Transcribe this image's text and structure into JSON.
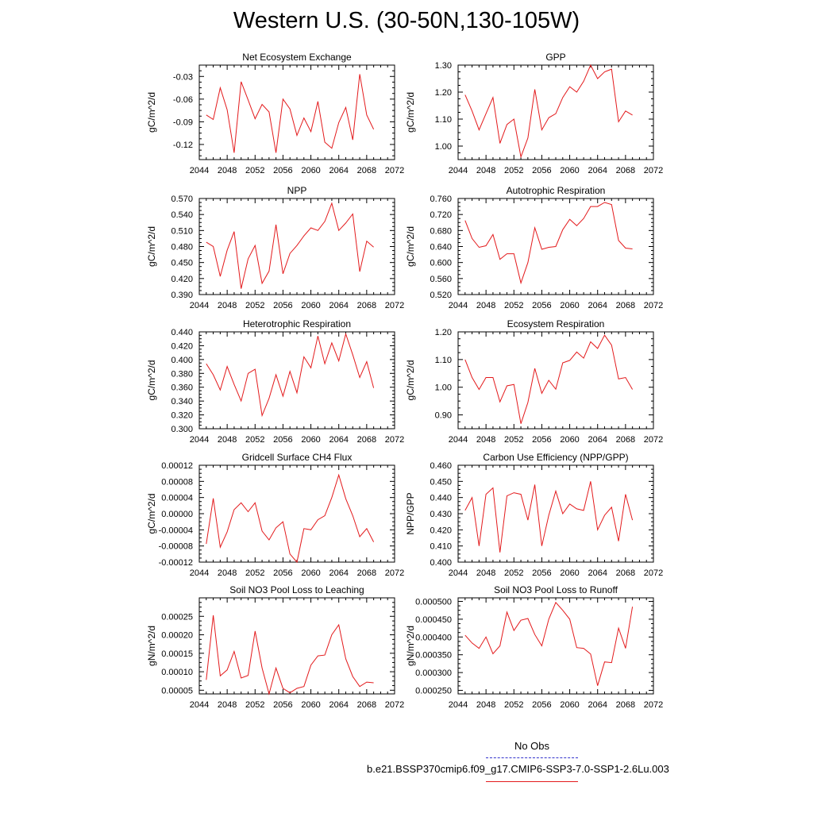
{
  "page": {
    "title": "Western U.S. (30-50N,130-105W)"
  },
  "legend": {
    "obs_label": "No Obs",
    "model_label": "b.e21.BSSP370cmip6.f09_g17.CMIP6-SSP3-7.0-SSP1-2.6Lu.003",
    "obs_color": "#3333cc",
    "model_color": "#e31a1c"
  },
  "chart_data": [
    {
      "type": "line",
      "title": "Net Ecosystem Exchange",
      "ylabel": "gC/m^2/d",
      "xlim": [
        2044,
        2072
      ],
      "xticks": [
        2044,
        2048,
        2052,
        2056,
        2060,
        2064,
        2068,
        2072
      ],
      "ylim": [
        -0.14,
        -0.015
      ],
      "yticks": [
        -0.03,
        -0.06,
        -0.09,
        -0.12
      ],
      "ytick_labels": [
        "-0.03",
        "-0.06",
        "-0.09",
        "-0.12"
      ],
      "series": [
        {
          "color": "#e31a1c",
          "x": [
            2045,
            2046,
            2047,
            2048,
            2049,
            2050,
            2051,
            2052,
            2053,
            2054,
            2055,
            2056,
            2057,
            2058,
            2059,
            2060,
            2061,
            2062,
            2063,
            2064,
            2065,
            2066,
            2067,
            2068,
            2069
          ],
          "values": [
            -0.081,
            -0.087,
            -0.045,
            -0.074,
            -0.131,
            -0.037,
            -0.061,
            -0.086,
            -0.067,
            -0.077,
            -0.131,
            -0.06,
            -0.073,
            -0.108,
            -0.085,
            -0.103,
            -0.063,
            -0.117,
            -0.125,
            -0.091,
            -0.071,
            -0.114,
            -0.027,
            -0.081,
            -0.1
          ]
        }
      ]
    },
    {
      "type": "line",
      "title": "GPP",
      "ylabel": "gC/m^2/d",
      "xlim": [
        2044,
        2072
      ],
      "xticks": [
        2044,
        2048,
        2052,
        2056,
        2060,
        2064,
        2068,
        2072
      ],
      "ylim": [
        0.95,
        1.3
      ],
      "yticks": [
        1.0,
        1.1,
        1.2,
        1.3
      ],
      "ytick_labels": [
        "1.00",
        "1.10",
        "1.20",
        "1.30"
      ],
      "series": [
        {
          "color": "#e31a1c",
          "x": [
            2045,
            2046,
            2047,
            2048,
            2049,
            2050,
            2051,
            2052,
            2053,
            2054,
            2055,
            2056,
            2057,
            2058,
            2059,
            2060,
            2061,
            2062,
            2063,
            2064,
            2065,
            2066,
            2067,
            2068,
            2069
          ],
          "values": [
            1.19,
            1.13,
            1.06,
            1.12,
            1.18,
            1.01,
            1.08,
            1.1,
            0.96,
            1.03,
            1.21,
            1.06,
            1.105,
            1.12,
            1.18,
            1.22,
            1.2,
            1.24,
            1.3,
            1.25,
            1.275,
            1.285,
            1.09,
            1.13,
            1.115
          ]
        }
      ]
    },
    {
      "type": "line",
      "title": "NPP",
      "ylabel": "gC/m^2/d",
      "xlim": [
        2044,
        2072
      ],
      "xticks": [
        2044,
        2048,
        2052,
        2056,
        2060,
        2064,
        2068,
        2072
      ],
      "ylim": [
        0.39,
        0.57
      ],
      "yticks": [
        0.39,
        0.42,
        0.45,
        0.48,
        0.51,
        0.54,
        0.57
      ],
      "ytick_labels": [
        "0.390",
        "0.420",
        "0.450",
        "0.480",
        "0.510",
        "0.540",
        "0.570"
      ],
      "series": [
        {
          "color": "#e31a1c",
          "x": [
            2045,
            2046,
            2047,
            2048,
            2049,
            2050,
            2051,
            2052,
            2053,
            2054,
            2055,
            2056,
            2057,
            2058,
            2059,
            2060,
            2061,
            2062,
            2063,
            2064,
            2065,
            2066,
            2067,
            2068,
            2069
          ],
          "values": [
            0.488,
            0.48,
            0.424,
            0.473,
            0.508,
            0.401,
            0.457,
            0.482,
            0.411,
            0.434,
            0.521,
            0.429,
            0.467,
            0.482,
            0.5,
            0.515,
            0.51,
            0.527,
            0.561,
            0.51,
            0.524,
            0.541,
            0.433,
            0.49,
            0.479
          ]
        }
      ]
    },
    {
      "type": "line",
      "title": "Autotrophic Respiration",
      "ylabel": "gC/m^2/d",
      "xlim": [
        2044,
        2072
      ],
      "xticks": [
        2044,
        2048,
        2052,
        2056,
        2060,
        2064,
        2068,
        2072
      ],
      "ylim": [
        0.52,
        0.76
      ],
      "yticks": [
        0.52,
        0.56,
        0.6,
        0.64,
        0.68,
        0.72,
        0.76
      ],
      "ytick_labels": [
        "0.520",
        "0.560",
        "0.600",
        "0.640",
        "0.680",
        "0.720",
        "0.760"
      ],
      "series": [
        {
          "color": "#e31a1c",
          "x": [
            2045,
            2046,
            2047,
            2048,
            2049,
            2050,
            2051,
            2052,
            2053,
            2054,
            2055,
            2056,
            2057,
            2058,
            2059,
            2060,
            2061,
            2062,
            2063,
            2064,
            2065,
            2066,
            2067,
            2068,
            2069
          ],
          "values": [
            0.705,
            0.66,
            0.638,
            0.642,
            0.67,
            0.608,
            0.622,
            0.622,
            0.549,
            0.6,
            0.687,
            0.633,
            0.638,
            0.64,
            0.682,
            0.708,
            0.692,
            0.71,
            0.74,
            0.74,
            0.75,
            0.745,
            0.655,
            0.636,
            0.634
          ]
        }
      ]
    },
    {
      "type": "line",
      "title": "Heterotrophic Respiration",
      "ylabel": "gC/m^2/d",
      "xlim": [
        2044,
        2072
      ],
      "xticks": [
        2044,
        2048,
        2052,
        2056,
        2060,
        2064,
        2068,
        2072
      ],
      "ylim": [
        0.3,
        0.44
      ],
      "yticks": [
        0.3,
        0.32,
        0.34,
        0.36,
        0.38,
        0.4,
        0.42,
        0.44
      ],
      "ytick_labels": [
        "0.300",
        "0.320",
        "0.340",
        "0.360",
        "0.380",
        "0.400",
        "0.420",
        "0.440"
      ],
      "series": [
        {
          "color": "#e31a1c",
          "x": [
            2045,
            2046,
            2047,
            2048,
            2049,
            2050,
            2051,
            2052,
            2053,
            2054,
            2055,
            2056,
            2057,
            2058,
            2059,
            2060,
            2061,
            2062,
            2063,
            2064,
            2065,
            2066,
            2067,
            2068,
            2069
          ],
          "values": [
            0.394,
            0.378,
            0.356,
            0.39,
            0.364,
            0.34,
            0.38,
            0.386,
            0.319,
            0.344,
            0.378,
            0.347,
            0.383,
            0.352,
            0.404,
            0.388,
            0.434,
            0.394,
            0.424,
            0.398,
            0.437,
            0.407,
            0.374,
            0.397,
            0.359
          ]
        }
      ]
    },
    {
      "type": "line",
      "title": "Ecosystem Respiration",
      "ylabel": "gC/m^2/d",
      "xlim": [
        2044,
        2072
      ],
      "xticks": [
        2044,
        2048,
        2052,
        2056,
        2060,
        2064,
        2068,
        2072
      ],
      "ylim": [
        0.85,
        1.2
      ],
      "yticks": [
        0.9,
        1.0,
        1.1,
        1.2
      ],
      "ytick_labels": [
        "0.90",
        "1.00",
        "1.10",
        "1.20"
      ],
      "series": [
        {
          "color": "#e31a1c",
          "x": [
            2045,
            2046,
            2047,
            2048,
            2049,
            2050,
            2051,
            2052,
            2053,
            2054,
            2055,
            2056,
            2057,
            2058,
            2059,
            2060,
            2061,
            2062,
            2063,
            2064,
            2065,
            2066,
            2067,
            2068,
            2069
          ],
          "values": [
            1.1,
            1.035,
            0.992,
            1.035,
            1.035,
            0.947,
            1.005,
            1.01,
            0.868,
            0.945,
            1.068,
            0.978,
            1.025,
            0.993,
            1.088,
            1.097,
            1.127,
            1.105,
            1.164,
            1.14,
            1.188,
            1.152,
            1.03,
            1.035,
            0.992
          ]
        }
      ]
    },
    {
      "type": "line",
      "title": "Gridcell Surface CH4 Flux",
      "ylabel": "gC/m^2/d",
      "xlim": [
        2044,
        2072
      ],
      "xticks": [
        2044,
        2048,
        2052,
        2056,
        2060,
        2064,
        2068,
        2072
      ],
      "ylim": [
        -0.00012,
        0.00012
      ],
      "yticks": [
        -0.00012,
        -8e-05,
        -4e-05,
        0.0,
        4e-05,
        8e-05,
        0.00012
      ],
      "ytick_labels": [
        "-0.00012",
        "-0.00008",
        "-0.00004",
        "0.00000",
        "0.00004",
        "0.00008",
        "0.00012"
      ],
      "series": [
        {
          "color": "#e31a1c",
          "x": [
            2045,
            2046,
            2047,
            2048,
            2049,
            2050,
            2051,
            2052,
            2053,
            2054,
            2055,
            2056,
            2057,
            2058,
            2059,
            2060,
            2061,
            2062,
            2063,
            2064,
            2065,
            2066,
            2067,
            2068,
            2069
          ],
          "values": [
            -7.5e-05,
            3.8e-05,
            -8.3e-05,
            -4.5e-05,
            1e-05,
            2.7e-05,
            5e-06,
            2.7e-05,
            -4.3e-05,
            -6.5e-05,
            -3.5e-05,
            -2e-05,
            -0.0001,
            -0.00012,
            -3.7e-05,
            -4e-05,
            -1.5e-05,
            -5e-06,
            4e-05,
            9.6e-05,
            3.7e-05,
            -5e-06,
            -5.7e-05,
            -3.7e-05,
            -7e-05
          ]
        }
      ]
    },
    {
      "type": "line",
      "title": "Carbon Use Efficiency (NPP/GPP)",
      "ylabel": "NPP/GPP",
      "xlim": [
        2044,
        2072
      ],
      "xticks": [
        2044,
        2048,
        2052,
        2056,
        2060,
        2064,
        2068,
        2072
      ],
      "ylim": [
        0.4,
        0.46
      ],
      "yticks": [
        0.4,
        0.41,
        0.42,
        0.43,
        0.44,
        0.45,
        0.46
      ],
      "ytick_labels": [
        "0.400",
        "0.410",
        "0.420",
        "0.430",
        "0.440",
        "0.450",
        "0.460"
      ],
      "series": [
        {
          "color": "#e31a1c",
          "x": [
            2045,
            2046,
            2047,
            2048,
            2049,
            2050,
            2051,
            2052,
            2053,
            2054,
            2055,
            2056,
            2057,
            2058,
            2059,
            2060,
            2061,
            2062,
            2063,
            2064,
            2065,
            2066,
            2067,
            2068,
            2069
          ],
          "values": [
            0.432,
            0.44,
            0.41,
            0.442,
            0.446,
            0.406,
            0.441,
            0.443,
            0.442,
            0.426,
            0.448,
            0.41,
            0.429,
            0.444,
            0.43,
            0.436,
            0.433,
            0.432,
            0.45,
            0.42,
            0.429,
            0.434,
            0.413,
            0.442,
            0.426
          ]
        }
      ]
    },
    {
      "type": "line",
      "title": "Soil NO3 Pool Loss to Leaching",
      "ylabel": "gN/m^2/d",
      "xlim": [
        2044,
        2072
      ],
      "xticks": [
        2044,
        2048,
        2052,
        2056,
        2060,
        2064,
        2068,
        2072
      ],
      "ylim": [
        4e-05,
        0.0003
      ],
      "yticks": [
        5e-05,
        0.0001,
        0.00015,
        0.0002,
        0.00025
      ],
      "ytick_labels": [
        "0.00005",
        "0.00010",
        "0.00015",
        "0.00020",
        "0.00025"
      ],
      "series": [
        {
          "color": "#e31a1c",
          "x": [
            2045,
            2046,
            2047,
            2048,
            2049,
            2050,
            2051,
            2052,
            2053,
            2054,
            2055,
            2056,
            2057,
            2058,
            2059,
            2060,
            2061,
            2062,
            2063,
            2064,
            2065,
            2066,
            2067,
            2068,
            2069
          ],
          "values": [
            7.8e-05,
            0.000253,
            8.9e-05,
            0.000105,
            0.000155,
            8.3e-05,
            9e-05,
            0.00021,
            0.00011,
            4e-05,
            0.00011,
            5.5e-05,
            4.3e-05,
            5.5e-05,
            6e-05,
            0.000118,
            0.000143,
            0.000145,
            0.0002,
            0.000227,
            0.000135,
            8.7e-05,
            6e-05,
            7.2e-05,
            7e-05
          ]
        }
      ]
    },
    {
      "type": "line",
      "title": "Soil NO3 Pool Loss to Runoff",
      "ylabel": "gN/m^2/d",
      "xlim": [
        2044,
        2072
      ],
      "xticks": [
        2044,
        2048,
        2052,
        2056,
        2060,
        2064,
        2068,
        2072
      ],
      "ylim": [
        0.00024,
        0.00051
      ],
      "yticks": [
        0.00025,
        0.0003,
        0.00035,
        0.0004,
        0.00045,
        0.0005
      ],
      "ytick_labels": [
        "0.000250",
        "0.000300",
        "0.000350",
        "0.000400",
        "0.000450",
        "0.000500"
      ],
      "series": [
        {
          "color": "#e31a1c",
          "x": [
            2045,
            2046,
            2047,
            2048,
            2049,
            2050,
            2051,
            2052,
            2053,
            2054,
            2055,
            2056,
            2057,
            2058,
            2059,
            2060,
            2061,
            2062,
            2063,
            2064,
            2065,
            2066,
            2067,
            2068,
            2069
          ],
          "values": [
            0.000405,
            0.000383,
            0.000368,
            0.0004,
            0.000353,
            0.000375,
            0.00047,
            0.000418,
            0.000447,
            0.000452,
            0.000407,
            0.000375,
            0.00045,
            0.000497,
            0.000475,
            0.00045,
            0.00037,
            0.000368,
            0.000352,
            0.000263,
            0.00033,
            0.000328,
            0.000425,
            0.000368,
            0.000485
          ]
        }
      ]
    }
  ]
}
